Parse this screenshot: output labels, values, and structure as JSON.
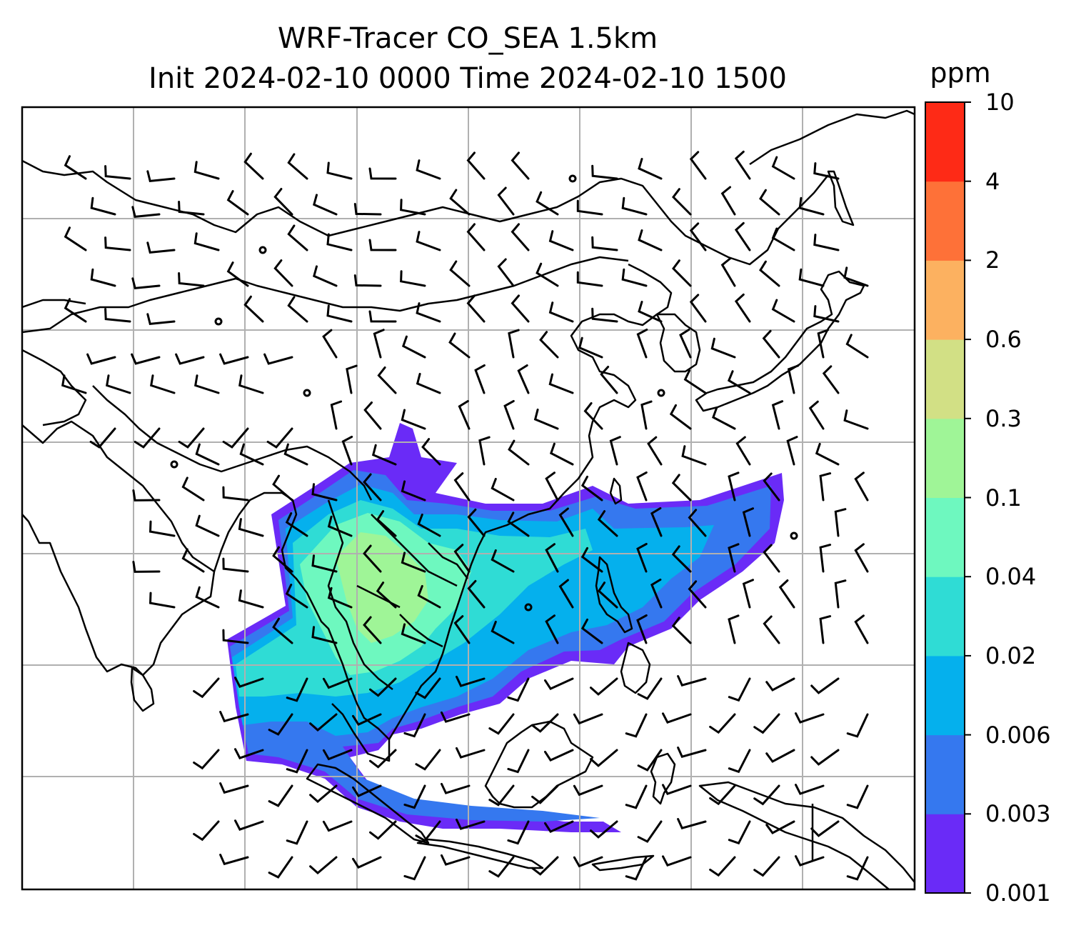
{
  "title": {
    "line1": "WRF-Tracer CO_SEA 1.5km",
    "line2": "Init 2024-02-10 0000 Time 2024-02-10 1500"
  },
  "colorbar": {
    "unit": "ppm",
    "levels": [
      "0.001",
      "0.003",
      "0.006",
      "0.02",
      "0.04",
      "0.1",
      "0.3",
      "0.6",
      "2",
      "4",
      "10"
    ],
    "colors": [
      "#6a2bf7",
      "#3578ef",
      "#05b0ed",
      "#2fdcd5",
      "#6ef8bf",
      "#9ff597",
      "#d2e085",
      "#fcb160",
      "#fe7138",
      "#fe2a16"
    ]
  },
  "map": {
    "ocean_color": "#ffffff",
    "gridline_color": "#b0b0b0",
    "coastline_color": "#000000",
    "wind_barb_color": "#000000",
    "plume_region": "Southeast Asia (Indochina to Philippines and Borneo)"
  }
}
